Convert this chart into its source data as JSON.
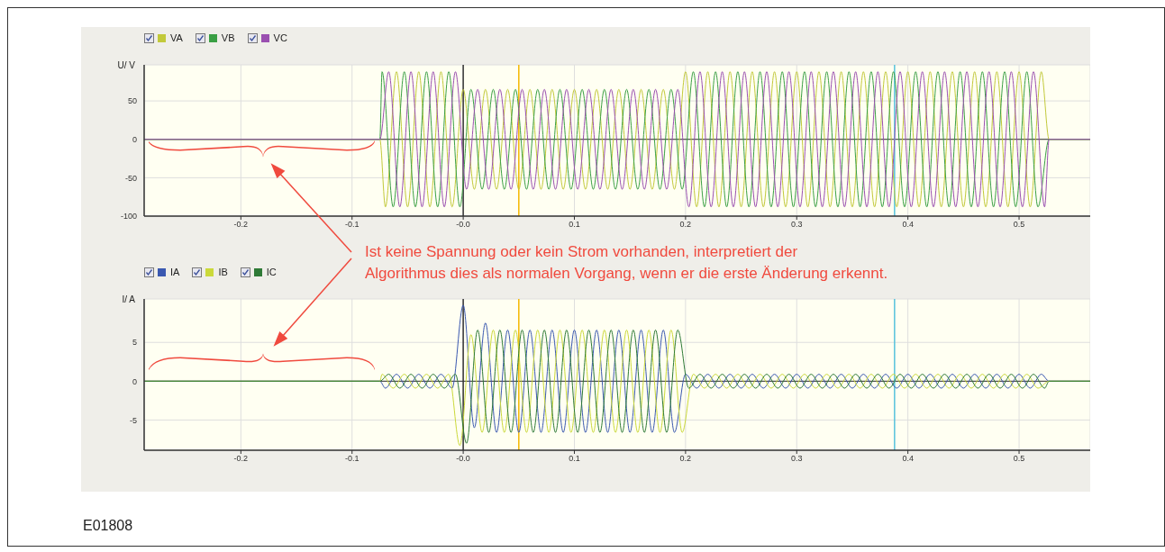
{
  "chart_data": [
    {
      "type": "line",
      "ylabel": "U/ V",
      "xlim": [
        -0.287,
        0.564
      ],
      "xticks": [
        -0.2,
        -0.1,
        {
          "value": 0,
          "label": "-0.0"
        },
        0.1,
        0.2,
        0.3,
        0.4,
        0.5
      ],
      "ylim": [
        -100,
        97
      ],
      "yticks": [
        -100,
        -50,
        0,
        50
      ],
      "grid": true,
      "legend": "top left",
      "ref_lines": [
        {
          "axis": "y",
          "value": 0,
          "color": "#333333"
        },
        {
          "axis": "x",
          "value": 0,
          "color": "#333333"
        },
        {
          "axis": "x",
          "value": 0.05,
          "color": "#f5b800"
        },
        {
          "axis": "x",
          "value": 0.388,
          "color": "#56c2dc"
        }
      ],
      "annotations": [
        "Ist keine Spannung oder kein Strom vorhanden, interpretiert der\nAlgorithmus dies als normalen Vorgang, wenn er die erste Änderung erkennt."
      ],
      "series": [
        {
          "name": "VA",
          "color": "#c2c93a",
          "x": [
            -0.287,
            -0.075,
            -0.07,
            -0.06,
            -0.05,
            -0.04,
            -0.03,
            -0.02,
            -0.01,
            0,
            0.01,
            0.02,
            0.03,
            0.04,
            0.05,
            0.06,
            0.07,
            0.08,
            0.09,
            0.1,
            0.11,
            0.12,
            0.13,
            0.14,
            0.15,
            0.16,
            0.17,
            0.18,
            0.19,
            0.2,
            0.21,
            0.22,
            0.23,
            0.24,
            0.25,
            0.26,
            0.27,
            0.28,
            0.29,
            0.3,
            0.31,
            0.32,
            0.33,
            0.34,
            0.35,
            0.36,
            0.37,
            0.38,
            0.39,
            0.4,
            0.41,
            0.42,
            0.43,
            0.44,
            0.45,
            0.46,
            0.47,
            0.48,
            0.49,
            0.5,
            0.51,
            0.52,
            0.527,
            0.564
          ],
          "values": [
            0,
            0,
            -88,
            88,
            -88,
            88,
            -88,
            88,
            -88,
            65,
            -65,
            65,
            -65,
            65,
            -65,
            65,
            -65,
            65,
            -65,
            65,
            -65,
            65,
            -65,
            65,
            -65,
            65,
            -65,
            65,
            -65,
            88,
            -88,
            88,
            -88,
            88,
            -88,
            88,
            -88,
            88,
            -88,
            88,
            -88,
            88,
            -88,
            88,
            -88,
            88,
            -88,
            88,
            -88,
            88,
            -88,
            88,
            -88,
            88,
            -88,
            88,
            -88,
            88,
            -88,
            88,
            -88,
            88,
            0,
            0
          ]
        },
        {
          "name": "VB",
          "color": "#3a9f44",
          "x": [
            -0.287,
            -0.075,
            -0.073,
            -0.063,
            -0.053,
            -0.043,
            -0.033,
            -0.023,
            -0.013,
            -0.003,
            0.007,
            0.017,
            0.027,
            0.037,
            0.047,
            0.057,
            0.067,
            0.077,
            0.087,
            0.097,
            0.107,
            0.117,
            0.127,
            0.137,
            0.147,
            0.157,
            0.167,
            0.177,
            0.187,
            0.197,
            0.207,
            0.217,
            0.227,
            0.237,
            0.247,
            0.257,
            0.267,
            0.277,
            0.287,
            0.297,
            0.307,
            0.317,
            0.327,
            0.337,
            0.347,
            0.357,
            0.367,
            0.377,
            0.387,
            0.397,
            0.407,
            0.417,
            0.427,
            0.437,
            0.447,
            0.457,
            0.467,
            0.477,
            0.487,
            0.497,
            0.507,
            0.517,
            0.527,
            0.564
          ],
          "values": [
            0,
            0,
            88,
            -88,
            88,
            -88,
            88,
            -88,
            88,
            -88,
            65,
            -65,
            65,
            -65,
            65,
            -65,
            65,
            -65,
            65,
            -65,
            65,
            -65,
            65,
            -65,
            65,
            -65,
            65,
            -65,
            65,
            -65,
            88,
            -88,
            88,
            -88,
            88,
            -88,
            88,
            -88,
            88,
            -88,
            88,
            -88,
            88,
            -88,
            88,
            -88,
            88,
            -88,
            88,
            -88,
            88,
            -88,
            88,
            -88,
            88,
            -88,
            88,
            -88,
            88,
            -88,
            88,
            -88,
            0,
            0
          ]
        },
        {
          "name": "VC",
          "color": "#9a4fb0",
          "x": [
            -0.287,
            -0.075,
            -0.067,
            -0.057,
            -0.047,
            -0.037,
            -0.027,
            -0.017,
            -0.007,
            0.003,
            0.013,
            0.023,
            0.033,
            0.043,
            0.053,
            0.063,
            0.073,
            0.083,
            0.093,
            0.103,
            0.113,
            0.123,
            0.133,
            0.143,
            0.153,
            0.163,
            0.173,
            0.183,
            0.193,
            0.203,
            0.213,
            0.223,
            0.233,
            0.243,
            0.253,
            0.263,
            0.273,
            0.283,
            0.293,
            0.303,
            0.313,
            0.323,
            0.333,
            0.343,
            0.353,
            0.363,
            0.373,
            0.383,
            0.393,
            0.403,
            0.413,
            0.423,
            0.433,
            0.443,
            0.453,
            0.463,
            0.473,
            0.483,
            0.493,
            0.503,
            0.513,
            0.523,
            0.527,
            0.564
          ],
          "values": [
            0,
            0,
            88,
            -88,
            88,
            -88,
            88,
            -88,
            88,
            -65,
            65,
            -65,
            65,
            -65,
            65,
            -65,
            65,
            -65,
            65,
            -65,
            65,
            -65,
            65,
            -65,
            65,
            -65,
            65,
            -65,
            65,
            -88,
            88,
            -88,
            88,
            -88,
            88,
            -88,
            88,
            -88,
            88,
            -88,
            88,
            -88,
            88,
            -88,
            88,
            -88,
            88,
            -88,
            88,
            -88,
            88,
            -88,
            88,
            -88,
            88,
            -88,
            88,
            -88,
            88,
            -88,
            88,
            -88,
            0,
            0
          ]
        }
      ]
    },
    {
      "type": "line",
      "ylabel": "I/ A",
      "xlim": [
        -0.287,
        0.564
      ],
      "xticks": [
        -0.2,
        -0.1,
        {
          "value": 0,
          "label": "-0.0"
        },
        0.1,
        0.2,
        0.3,
        0.4,
        0.5
      ],
      "ylim": [
        -8.9,
        10.6
      ],
      "yticks": [
        -5,
        0,
        5
      ],
      "grid": true,
      "legend": "top left",
      "ref_lines": [
        {
          "axis": "y",
          "value": 0,
          "color": "#333333"
        },
        {
          "axis": "x",
          "value": 0,
          "color": "#333333"
        },
        {
          "axis": "x",
          "value": 0.05,
          "color": "#f5b800"
        },
        {
          "axis": "x",
          "value": 0.388,
          "color": "#56c2dc"
        }
      ],
      "annotations": [
        "E01808"
      ],
      "series": [
        {
          "name": "IA",
          "color": "#3a58b0",
          "x": [
            -0.287,
            -0.075,
            -0.07,
            -0.06,
            -0.05,
            -0.04,
            -0.03,
            -0.02,
            -0.01,
            0,
            0.01,
            0.02,
            0.03,
            0.04,
            0.05,
            0.06,
            0.07,
            0.08,
            0.09,
            0.1,
            0.11,
            0.12,
            0.13,
            0.14,
            0.15,
            0.16,
            0.17,
            0.18,
            0.19,
            0.2,
            0.21,
            0.22,
            0.23,
            0.24,
            0.25,
            0.26,
            0.27,
            0.28,
            0.29,
            0.3,
            0.31,
            0.32,
            0.33,
            0.34,
            0.35,
            0.36,
            0.37,
            0.38,
            0.39,
            0.4,
            0.41,
            0.42,
            0.43,
            0.44,
            0.45,
            0.46,
            0.47,
            0.48,
            0.49,
            0.5,
            0.51,
            0.52,
            0.527,
            0.564
          ],
          "values": [
            0,
            0,
            -0.9,
            0.9,
            -0.9,
            0.9,
            -0.9,
            0.9,
            -0.9,
            9.8,
            -6,
            7.5,
            -6.6,
            6.6,
            -6.6,
            6.6,
            -6.6,
            6.6,
            -6.6,
            6.6,
            -6.6,
            6.6,
            -6.6,
            6.6,
            -6.6,
            6.6,
            -6.6,
            6.6,
            -6.6,
            0.9,
            -0.9,
            0.9,
            -0.9,
            0.9,
            -0.9,
            0.9,
            -0.9,
            0.9,
            -0.9,
            0.9,
            -0.9,
            0.9,
            -0.9,
            0.9,
            -0.9,
            0.9,
            -0.9,
            0.9,
            -0.9,
            0.9,
            -0.9,
            0.9,
            -0.9,
            0.9,
            -0.9,
            0.9,
            -0.9,
            0.9,
            -0.9,
            0.9,
            -0.9,
            0.9,
            0,
            0
          ]
        },
        {
          "name": "IB",
          "color": "#cbd93a",
          "x": [
            -0.287,
            -0.075,
            -0.073,
            -0.063,
            -0.053,
            -0.043,
            -0.033,
            -0.023,
            -0.013,
            -0.003,
            0.007,
            0.017,
            0.027,
            0.037,
            0.047,
            0.057,
            0.067,
            0.077,
            0.087,
            0.097,
            0.107,
            0.117,
            0.127,
            0.137,
            0.147,
            0.157,
            0.167,
            0.177,
            0.187,
            0.197,
            0.207,
            0.217,
            0.227,
            0.237,
            0.247,
            0.257,
            0.267,
            0.277,
            0.287,
            0.297,
            0.307,
            0.317,
            0.327,
            0.337,
            0.347,
            0.357,
            0.367,
            0.377,
            0.387,
            0.397,
            0.407,
            0.417,
            0.427,
            0.437,
            0.447,
            0.457,
            0.467,
            0.477,
            0.487,
            0.497,
            0.507,
            0.517,
            0.527,
            0.564
          ],
          "values": [
            0,
            0,
            0.9,
            -0.9,
            0.9,
            -0.9,
            0.9,
            -0.9,
            0.9,
            -8.3,
            6,
            -6.6,
            6.6,
            -6.6,
            6.6,
            -6.6,
            6.6,
            -6.6,
            6.6,
            -6.6,
            6.6,
            -6.6,
            6.6,
            -6.6,
            6.6,
            -6.6,
            6.6,
            -6.6,
            6.6,
            -6.6,
            0.9,
            -0.9,
            0.9,
            -0.9,
            0.9,
            -0.9,
            0.9,
            -0.9,
            0.9,
            -0.9,
            0.9,
            -0.9,
            0.9,
            -0.9,
            0.9,
            -0.9,
            0.9,
            -0.9,
            0.9,
            -0.9,
            0.9,
            -0.9,
            0.9,
            -0.9,
            0.9,
            -0.9,
            0.9,
            -0.9,
            0.9,
            -0.9,
            0.9,
            -0.9,
            0,
            0
          ]
        },
        {
          "name": "IC",
          "color": "#2e7a36",
          "x": [
            -0.287,
            -0.075,
            -0.067,
            -0.057,
            -0.047,
            -0.037,
            -0.027,
            -0.017,
            -0.007,
            0.003,
            0.013,
            0.023,
            0.033,
            0.043,
            0.053,
            0.063,
            0.073,
            0.083,
            0.093,
            0.103,
            0.113,
            0.123,
            0.133,
            0.143,
            0.153,
            0.163,
            0.173,
            0.183,
            0.193,
            0.203,
            0.213,
            0.223,
            0.233,
            0.243,
            0.253,
            0.263,
            0.273,
            0.283,
            0.293,
            0.303,
            0.313,
            0.323,
            0.333,
            0.343,
            0.353,
            0.363,
            0.373,
            0.383,
            0.393,
            0.403,
            0.413,
            0.423,
            0.433,
            0.443,
            0.453,
            0.463,
            0.473,
            0.483,
            0.493,
            0.503,
            0.513,
            0.523,
            0.527,
            0.564
          ],
          "values": [
            0,
            0,
            0.9,
            -0.9,
            0.9,
            -0.9,
            0.9,
            -0.9,
            0.9,
            -8,
            6.6,
            -6.6,
            6.6,
            -6.6,
            6.6,
            -6.6,
            6.6,
            -6.6,
            6.6,
            -6.6,
            6.6,
            -6.6,
            6.6,
            -6.6,
            6.6,
            -6.6,
            6.6,
            -6.6,
            6.6,
            -0.9,
            0.9,
            -0.9,
            0.9,
            -0.9,
            0.9,
            -0.9,
            0.9,
            -0.9,
            0.9,
            -0.9,
            0.9,
            -0.9,
            0.9,
            -0.9,
            0.9,
            -0.9,
            0.9,
            -0.9,
            0.9,
            -0.9,
            0.9,
            -0.9,
            0.9,
            -0.9,
            0.9,
            -0.9,
            0.9,
            -0.9,
            0.9,
            -0.9,
            0.9,
            -0.9,
            0,
            0
          ]
        }
      ]
    }
  ]
}
